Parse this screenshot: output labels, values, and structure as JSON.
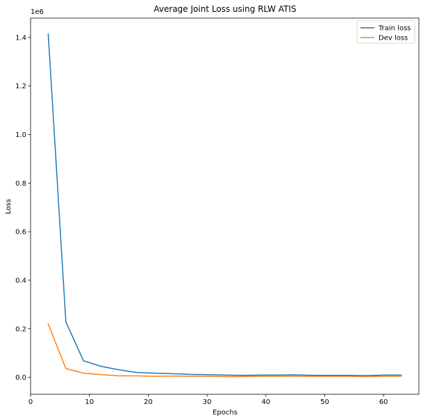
{
  "chart_data": {
    "type": "line",
    "title": "Average Joint Loss using RLW ATIS",
    "xlabel": "Epochs",
    "ylabel": "Loss",
    "y_offset_label": "1e6",
    "xlim": [
      0,
      66
    ],
    "ylim": [
      -0.07,
      1.48
    ],
    "x_ticks": [
      0,
      10,
      20,
      30,
      40,
      50,
      60
    ],
    "y_ticks": [
      0.0,
      0.2,
      0.4,
      0.6,
      0.8,
      1.0,
      1.2,
      1.4
    ],
    "y_tick_labels": [
      "0.0",
      "0.2",
      "0.4",
      "0.6",
      "0.8",
      "1.0",
      "1.2",
      "1.4"
    ],
    "grid": false,
    "legend_position": "top-right",
    "x": [
      3,
      6,
      9,
      12,
      15,
      18,
      21,
      24,
      27,
      30,
      33,
      36,
      39,
      42,
      45,
      48,
      51,
      54,
      57,
      60,
      63
    ],
    "series": [
      {
        "name": "Train loss",
        "color": "#1f77b4",
        "values": [
          1.415,
          0.228,
          0.068,
          0.045,
          0.031,
          0.02,
          0.017,
          0.015,
          0.012,
          0.011,
          0.009,
          0.008,
          0.009,
          0.009,
          0.01,
          0.008,
          0.008,
          0.008,
          0.007,
          0.009,
          0.009
        ]
      },
      {
        "name": "Dev loss",
        "color": "#ff7f0e",
        "values": [
          0.22,
          0.036,
          0.017,
          0.011,
          0.006,
          0.006,
          0.004,
          0.005,
          0.004,
          0.004,
          0.003,
          0.003,
          0.004,
          0.004,
          0.004,
          0.004,
          0.004,
          0.004,
          0.003,
          0.004,
          0.004
        ]
      }
    ]
  }
}
